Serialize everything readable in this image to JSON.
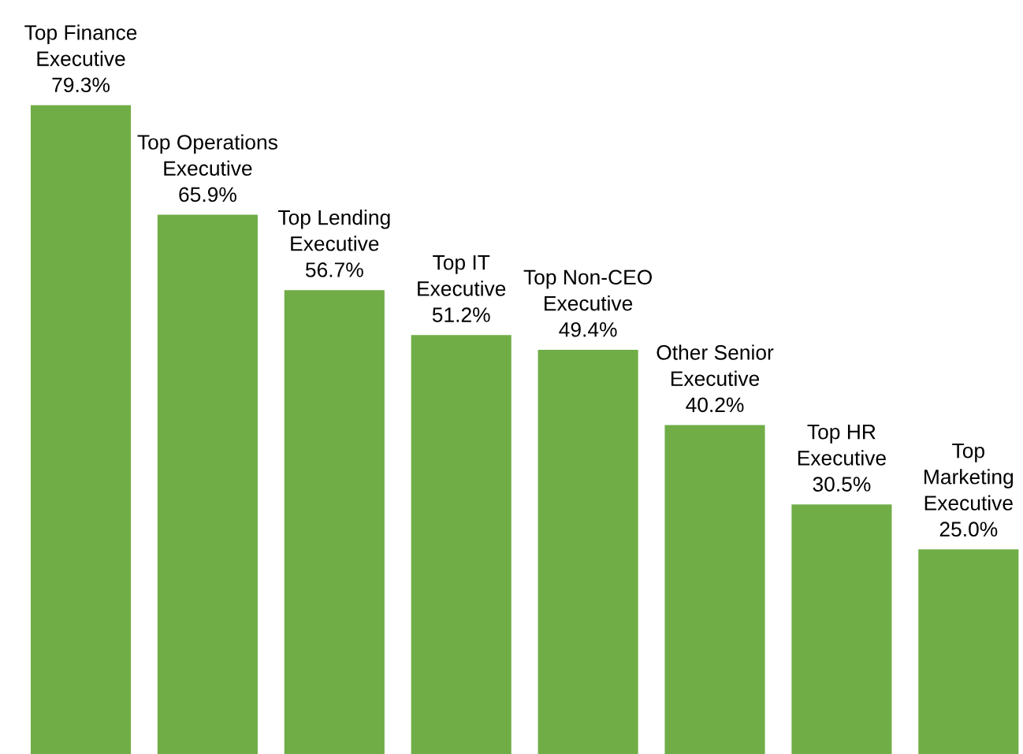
{
  "chart_data": {
    "type": "bar",
    "categories": [
      "Top Finance\nExecutive",
      "Top Operations\nExecutive",
      "Top Lending\nExecutive",
      "Top IT\nExecutive",
      "Top Non-CEO\nExecutive",
      "Other Senior\nExecutive",
      "Top HR\nExecutive",
      "Top\nMarketing\nExecutive"
    ],
    "values": [
      79.3,
      65.9,
      56.7,
      51.2,
      49.4,
      40.2,
      30.5,
      25.0
    ],
    "value_labels": [
      "79.3%",
      "65.9%",
      "56.7%",
      "51.2%",
      "49.4%",
      "40.2%",
      "30.5%",
      "25.0%"
    ],
    "color": "#70ad47"
  }
}
